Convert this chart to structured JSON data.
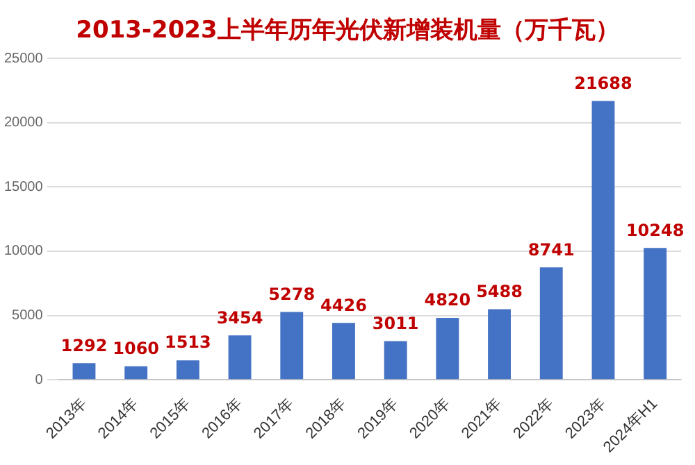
{
  "chart_data": {
    "type": "bar",
    "title": "2013-2023上半年历年光伏新增装机量（万千瓦）",
    "categories": [
      "2013年",
      "2014年",
      "2015年",
      "2016年",
      "2017年",
      "2018年",
      "2019年",
      "2020年",
      "2021年",
      "2022年",
      "2023年",
      "2024年H1"
    ],
    "values": [
      1292,
      1060,
      1513,
      3454,
      5278,
      4426,
      3011,
      4820,
      5488,
      8741,
      21688,
      10248
    ],
    "color": "#4472c4",
    "ylim": [
      0,
      25000
    ],
    "yticks": [
      0,
      5000,
      10000,
      15000,
      20000,
      25000
    ],
    "grid": "y",
    "data_labels": true,
    "legend": false
  }
}
